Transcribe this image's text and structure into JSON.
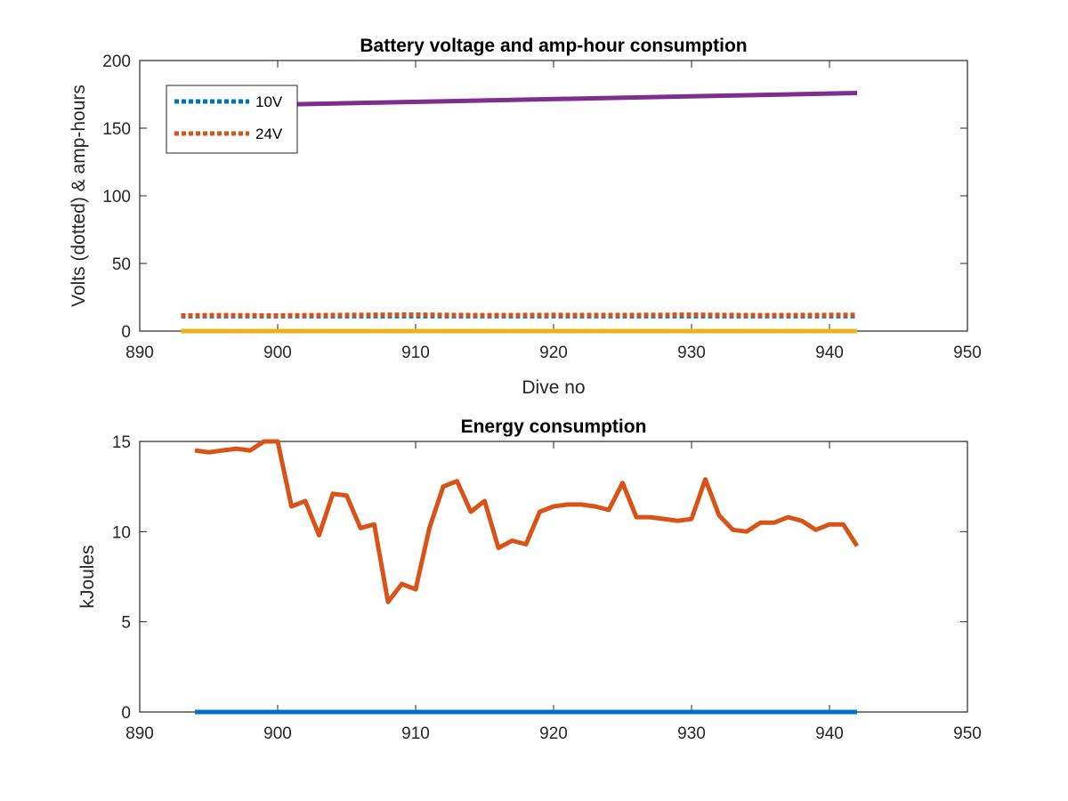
{
  "chart_data": [
    {
      "type": "line",
      "title": "Battery voltage and amp-hour consumption",
      "xlabel": "Dive no",
      "ylabel": "Volts (dotted) & amp-hours",
      "xlim": [
        890,
        950
      ],
      "ylim": [
        0,
        200
      ],
      "xticks": [
        890,
        900,
        910,
        920,
        930,
        940,
        950
      ],
      "yticks": [
        0,
        50,
        100,
        150,
        200
      ],
      "grid": false,
      "legend_position": "top-left",
      "series": [
        {
          "name": "10V",
          "style": "dotted",
          "color": "#0072BD",
          "in_legend": true,
          "x": [
            893,
            942
          ],
          "y": [
            11,
            11
          ]
        },
        {
          "name": "24V",
          "style": "dotted",
          "color": "#D95319",
          "in_legend": true,
          "x": [
            893,
            895,
            900,
            905,
            910,
            915,
            920,
            925,
            930,
            935,
            940,
            942
          ],
          "y": [
            11.5,
            11.8,
            11.6,
            12.0,
            12.2,
            11.8,
            12.0,
            11.9,
            12.1,
            11.8,
            12.0,
            12.0
          ]
        },
        {
          "name": "",
          "style": "solid",
          "color": "#EDB120",
          "in_legend": false,
          "x": [
            893,
            942
          ],
          "y": [
            0,
            0
          ]
        },
        {
          "name": "",
          "style": "solid",
          "color": "#7E2F8E",
          "in_legend": false,
          "x": [
            893,
            942
          ],
          "y": [
            166,
            176
          ]
        }
      ]
    },
    {
      "type": "line",
      "title": "Energy consumption",
      "xlabel": "",
      "ylabel": "kJoules",
      "xlim": [
        890,
        950
      ],
      "ylim": [
        0,
        15
      ],
      "xticks": [
        890,
        900,
        910,
        920,
        930,
        940,
        950
      ],
      "yticks": [
        0,
        5,
        10,
        15
      ],
      "grid": false,
      "series": [
        {
          "name": "",
          "style": "solid",
          "color": "#0072BD",
          "x": [
            894,
            942
          ],
          "y": [
            0,
            0
          ]
        },
        {
          "name": "",
          "style": "solid",
          "color": "#D95319",
          "x": [
            894,
            895,
            896,
            897,
            898,
            899,
            900,
            901,
            902,
            903,
            904,
            905,
            906,
            907,
            908,
            909,
            910,
            911,
            912,
            913,
            914,
            915,
            916,
            917,
            918,
            919,
            920,
            921,
            922,
            923,
            924,
            925,
            926,
            927,
            928,
            929,
            930,
            931,
            932,
            933,
            934,
            935,
            936,
            937,
            938,
            939,
            940,
            941,
            942
          ],
          "y": [
            14.5,
            14.4,
            14.5,
            14.6,
            14.5,
            15.0,
            15.0,
            11.4,
            11.7,
            9.8,
            12.1,
            12.0,
            10.2,
            10.4,
            6.1,
            7.1,
            6.8,
            10.2,
            12.5,
            12.8,
            11.1,
            11.7,
            9.1,
            9.5,
            9.3,
            11.1,
            11.4,
            11.5,
            11.5,
            11.4,
            11.2,
            12.7,
            10.8,
            10.8,
            10.7,
            10.6,
            10.7,
            12.9,
            10.9,
            10.1,
            10.0,
            10.5,
            10.5,
            10.8,
            10.6,
            10.1,
            10.4,
            10.4,
            9.2
          ]
        }
      ]
    }
  ]
}
